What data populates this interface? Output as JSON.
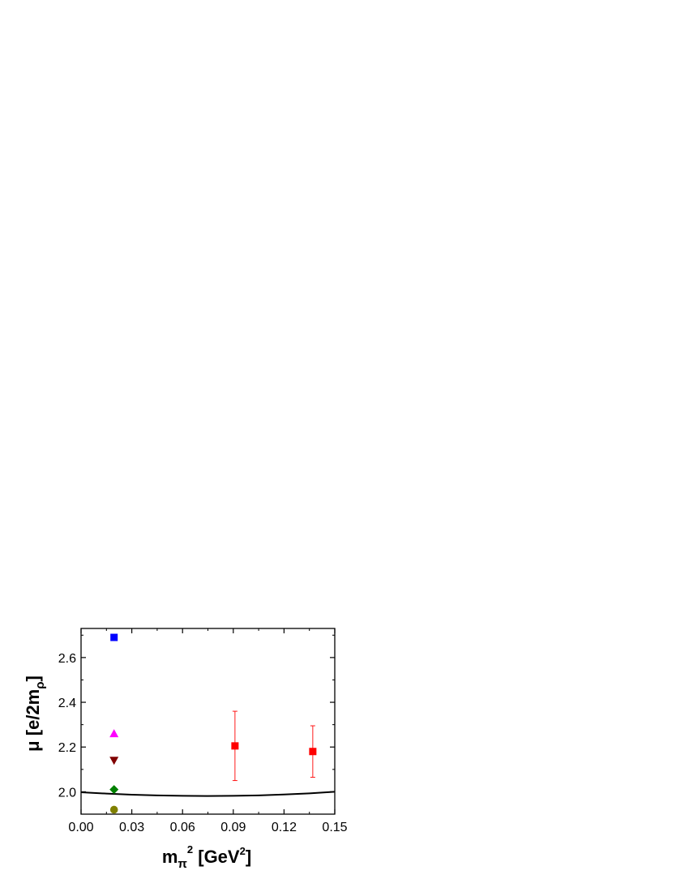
{
  "chart_data": {
    "type": "scatter",
    "xlabel": {
      "base": "m",
      "sub": "π",
      "sup": "2",
      "mid": " [GeV",
      "sup2": "2",
      "end": "]"
    },
    "ylabel": {
      "base": "μ [e/2m",
      "sub": "ρ",
      "end": "]"
    },
    "xlim": [
      0.0,
      0.15
    ],
    "ylim": [
      1.9,
      2.73
    ],
    "x_ticks": [
      0.0,
      0.03,
      0.06,
      0.09,
      0.12,
      0.15
    ],
    "x_tick_labels": [
      "0.00",
      "0.03",
      "0.06",
      "0.09",
      "0.12",
      "0.15"
    ],
    "y_ticks": [
      2.0,
      2.2,
      2.4,
      2.6
    ],
    "y_tick_labels": [
      "2.0",
      "2.2",
      "2.4",
      "2.6"
    ],
    "grid": false,
    "legend": "none",
    "series": [
      {
        "marker": "square",
        "color": "#0000ff",
        "points": [
          {
            "x": 0.0195,
            "y": 2.69
          }
        ]
      },
      {
        "marker": "triangle-up",
        "color": "#ff00ff",
        "points": [
          {
            "x": 0.0195,
            "y": 2.26
          }
        ]
      },
      {
        "marker": "triangle-down",
        "color": "#800000",
        "points": [
          {
            "x": 0.0195,
            "y": 2.14
          }
        ]
      },
      {
        "marker": "diamond",
        "color": "#008000",
        "points": [
          {
            "x": 0.0195,
            "y": 2.01
          }
        ]
      },
      {
        "marker": "circle",
        "color": "#808000",
        "points": [
          {
            "x": 0.0195,
            "y": 1.92
          }
        ]
      },
      {
        "marker": "square",
        "color": "#ff0000",
        "points": [
          {
            "x": 0.091,
            "y": 2.205,
            "err_low": 2.05,
            "err_high": 2.36
          },
          {
            "x": 0.137,
            "y": 2.18,
            "err_low": 2.065,
            "err_high": 2.295
          }
        ]
      }
    ],
    "curve": {
      "type": "line",
      "color": "#000000",
      "x": [
        0.0,
        0.015,
        0.03,
        0.045,
        0.06,
        0.075,
        0.09,
        0.105,
        0.12,
        0.135,
        0.15
      ],
      "y": [
        1.998,
        1.992,
        1.987,
        1.984,
        1.982,
        1.981,
        1.982,
        1.984,
        1.988,
        1.993,
        2.0
      ]
    }
  }
}
